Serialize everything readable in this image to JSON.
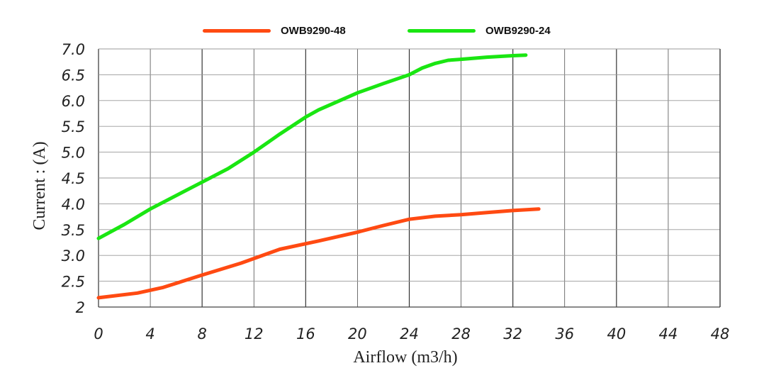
{
  "chart_data": {
    "type": "line",
    "title": "",
    "xlabel": "Airflow (m3/h)",
    "ylabel": "Current : (A)",
    "xlim": [
      0,
      48
    ],
    "ylim": [
      2,
      7
    ],
    "x_ticks": [
      "0",
      "4",
      "8",
      "12",
      "16",
      "20",
      "24",
      "28",
      "32",
      "36",
      "40",
      "44",
      "48"
    ],
    "y_ticks": [
      "2",
      "2.5",
      "3.0",
      "3.5",
      "4.0",
      "4.5",
      "5.0",
      "5.5",
      "6.0",
      "6.5",
      "7.0"
    ],
    "grid": true,
    "legend_position": "top",
    "series": [
      {
        "name": "OWB9290-48",
        "color": "#ff4a12",
        "points": [
          [
            0,
            2.18
          ],
          [
            3,
            2.27
          ],
          [
            5,
            2.38
          ],
          [
            8,
            2.62
          ],
          [
            11,
            2.85
          ],
          [
            14,
            3.12
          ],
          [
            17,
            3.28
          ],
          [
            20,
            3.45
          ],
          [
            22,
            3.58
          ],
          [
            24,
            3.7
          ],
          [
            26,
            3.76
          ],
          [
            28,
            3.79
          ],
          [
            30,
            3.83
          ],
          [
            32,
            3.87
          ],
          [
            34,
            3.9
          ]
        ]
      },
      {
        "name": "OWB9290-24",
        "color": "#1ae612",
        "points": [
          [
            0,
            3.33
          ],
          [
            2,
            3.6
          ],
          [
            4,
            3.9
          ],
          [
            8,
            4.42
          ],
          [
            10,
            4.68
          ],
          [
            12,
            5.0
          ],
          [
            14,
            5.35
          ],
          [
            16,
            5.68
          ],
          [
            17,
            5.82
          ],
          [
            20,
            6.15
          ],
          [
            22,
            6.33
          ],
          [
            24,
            6.5
          ],
          [
            25,
            6.63
          ],
          [
            26,
            6.72
          ],
          [
            27,
            6.78
          ],
          [
            28,
            6.8
          ],
          [
            30,
            6.84
          ],
          [
            32,
            6.87
          ],
          [
            33,
            6.88
          ]
        ]
      }
    ]
  }
}
